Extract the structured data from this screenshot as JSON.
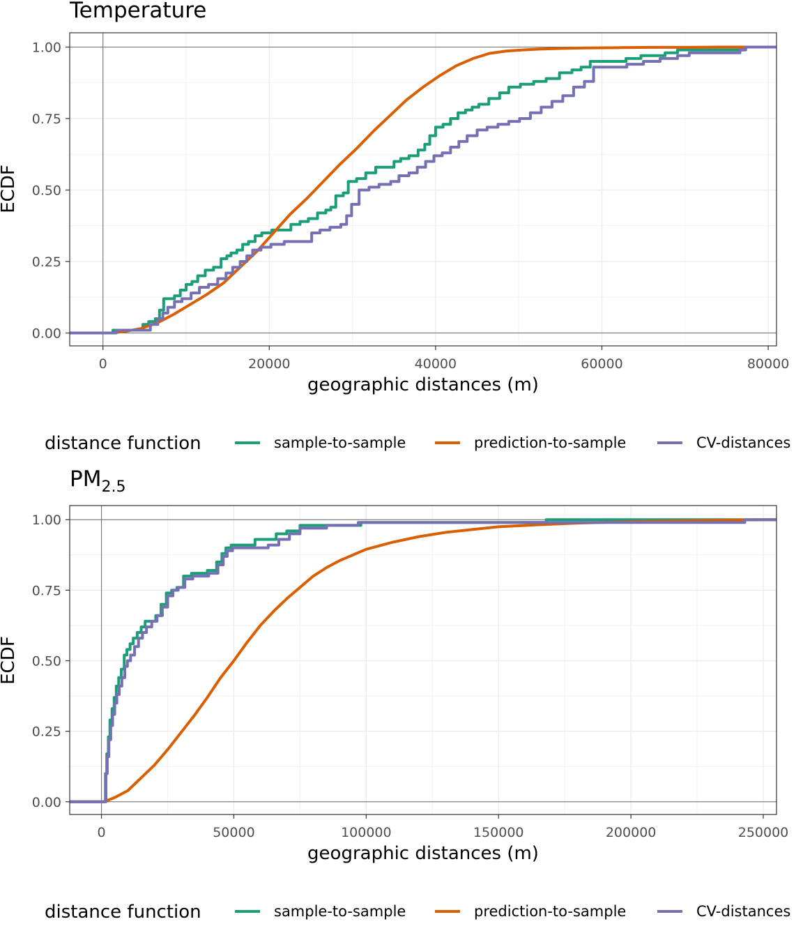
{
  "legend": {
    "title": "distance function",
    "items": [
      {
        "label": "sample-to-sample",
        "color": "#1b9e77"
      },
      {
        "label": "prediction-to-sample",
        "color": "#d95f02"
      },
      {
        "label": "CV-distances",
        "color": "#7570b3"
      }
    ]
  },
  "chart_data": [
    {
      "type": "line",
      "title": "Temperature",
      "xlabel": "geographic distances (m)",
      "ylabel": "ECDF",
      "xlim": [
        -4000,
        81000
      ],
      "ylim": [
        -0.045,
        1.05
      ],
      "xticks": [
        0,
        20000,
        40000,
        60000,
        80000
      ],
      "xtick_labels": [
        "0",
        "20000",
        "40000",
        "60000",
        "80000"
      ],
      "yticks": [
        0,
        0.25,
        0.5,
        0.75,
        1.0
      ],
      "ytick_labels": [
        "0.00",
        "0.25",
        "0.50",
        "0.75",
        "1.00"
      ],
      "grid": true,
      "legend_position": "bottom",
      "series": [
        {
          "name": "sample-to-sample",
          "color": "#1b9e77",
          "step": true,
          "x": [
            -4000,
            1000,
            1200,
            3500,
            4800,
            5500,
            6300,
            6800,
            7300,
            7800,
            8600,
            9300,
            10000,
            10700,
            11400,
            12300,
            13300,
            14200,
            14900,
            15400,
            16100,
            16800,
            17500,
            18300,
            19100,
            20300,
            21400,
            22600,
            23700,
            24700,
            25800,
            26800,
            27400,
            28000,
            28900,
            29500,
            30500,
            31600,
            32800,
            33900,
            35000,
            35800,
            36800,
            37900,
            38700,
            39300,
            40000,
            40900,
            41800,
            42700,
            43600,
            44400,
            45200,
            46400,
            47700,
            48800,
            50200,
            51800,
            53300,
            54900,
            56400,
            57500,
            58600,
            59700,
            61200,
            62900,
            64700,
            67600,
            69100,
            70600,
            72200,
            75800,
            77200,
            81000
          ],
          "y": [
            0,
            0,
            0.01,
            0.01,
            0.03,
            0.04,
            0.05,
            0.08,
            0.12,
            0.12,
            0.13,
            0.15,
            0.17,
            0.18,
            0.2,
            0.22,
            0.23,
            0.26,
            0.27,
            0.28,
            0.29,
            0.31,
            0.32,
            0.34,
            0.35,
            0.36,
            0.36,
            0.38,
            0.39,
            0.4,
            0.42,
            0.43,
            0.44,
            0.48,
            0.49,
            0.53,
            0.54,
            0.56,
            0.58,
            0.58,
            0.6,
            0.61,
            0.62,
            0.64,
            0.66,
            0.69,
            0.72,
            0.73,
            0.75,
            0.77,
            0.78,
            0.79,
            0.8,
            0.82,
            0.84,
            0.86,
            0.87,
            0.88,
            0.89,
            0.91,
            0.92,
            0.93,
            0.95,
            0.95,
            0.95,
            0.96,
            0.97,
            0.98,
            0.99,
            0.99,
            0.99,
            0.99,
            1.0,
            1.0
          ]
        },
        {
          "name": "prediction-to-sample",
          "color": "#d95f02",
          "step": false,
          "x": [
            -4000,
            1000,
            2500,
            4500,
            6500,
            8500,
            10500,
            12500,
            14500,
            16500,
            18500,
            20500,
            22500,
            24500,
            26500,
            28500,
            30500,
            32500,
            34500,
            36500,
            38500,
            40500,
            42500,
            44500,
            46500,
            48500,
            50500,
            52500,
            55000,
            58000,
            62000,
            66000,
            70000,
            74000,
            77000,
            81000
          ],
          "y": [
            0,
            0,
            0.005,
            0.015,
            0.035,
            0.065,
            0.1,
            0.135,
            0.175,
            0.23,
            0.285,
            0.35,
            0.415,
            0.47,
            0.53,
            0.59,
            0.645,
            0.705,
            0.76,
            0.815,
            0.86,
            0.9,
            0.935,
            0.96,
            0.978,
            0.986,
            0.99,
            0.993,
            0.995,
            0.997,
            0.998,
            0.999,
            0.999,
            1.0,
            1.0,
            1.0
          ]
        },
        {
          "name": "CV-distances",
          "color": "#7570b3",
          "step": true,
          "x": [
            -4000,
            1200,
            1600,
            4500,
            5700,
            6600,
            7200,
            7800,
            8600,
            9500,
            10600,
            11600,
            12700,
            13800,
            14800,
            15600,
            16500,
            17300,
            18000,
            19000,
            20200,
            21800,
            24000,
            25100,
            26100,
            27300,
            28600,
            29300,
            29900,
            30800,
            32000,
            33200,
            34600,
            35600,
            36800,
            37800,
            38800,
            39800,
            40800,
            41800,
            42800,
            43800,
            45000,
            46200,
            47500,
            48800,
            50100,
            51400,
            52700,
            54000,
            55300,
            56600,
            57900,
            59000,
            61100,
            63000,
            65000,
            67000,
            69100,
            70500,
            75500,
            76600,
            77300,
            81000
          ],
          "y": [
            0,
            0,
            0.01,
            0.01,
            0.03,
            0.05,
            0.07,
            0.09,
            0.11,
            0.12,
            0.14,
            0.16,
            0.17,
            0.19,
            0.21,
            0.23,
            0.25,
            0.27,
            0.29,
            0.3,
            0.31,
            0.32,
            0.32,
            0.35,
            0.36,
            0.37,
            0.38,
            0.41,
            0.45,
            0.5,
            0.51,
            0.52,
            0.53,
            0.55,
            0.56,
            0.58,
            0.6,
            0.62,
            0.63,
            0.65,
            0.67,
            0.69,
            0.71,
            0.72,
            0.73,
            0.74,
            0.75,
            0.77,
            0.79,
            0.81,
            0.83,
            0.86,
            0.88,
            0.93,
            0.93,
            0.94,
            0.95,
            0.96,
            0.97,
            0.98,
            0.98,
            0.99,
            1.0,
            1.0
          ]
        }
      ]
    },
    {
      "type": "line",
      "title": "PM",
      "title_subscript": "2.5",
      "xlabel": "geographic distances (m)",
      "ylabel": "ECDF",
      "xlim": [
        -12000,
        255000
      ],
      "ylim": [
        -0.045,
        1.05
      ],
      "xticks": [
        0,
        50000,
        100000,
        150000,
        200000,
        250000
      ],
      "xtick_labels": [
        "0",
        "50000",
        "100000",
        "150000",
        "200000",
        "250000"
      ],
      "yticks": [
        0,
        0.25,
        0.5,
        0.75,
        1.0
      ],
      "ytick_labels": [
        "0.00",
        "0.25",
        "0.50",
        "0.75",
        "1.00"
      ],
      "grid": true,
      "legend_position": "bottom",
      "series": [
        {
          "name": "sample-to-sample",
          "color": "#1b9e77",
          "step": true,
          "x": [
            -12000,
            1000,
            1500,
            2000,
            2600,
            3200,
            4000,
            4800,
            5600,
            6500,
            7500,
            8600,
            9600,
            10800,
            12000,
            13500,
            15000,
            16500,
            18500,
            20500,
            22500,
            24500,
            26500,
            28500,
            31000,
            34000,
            37000,
            40000,
            43500,
            45500,
            47000,
            49000,
            53000,
            58000,
            62000,
            66000,
            70000,
            75000,
            85000,
            98000,
            110000,
            130000,
            150000,
            168000,
            190000,
            220000,
            244000,
            255000
          ],
          "y": [
            0,
            0,
            0.1,
            0.17,
            0.23,
            0.29,
            0.33,
            0.37,
            0.41,
            0.44,
            0.47,
            0.52,
            0.54,
            0.56,
            0.58,
            0.6,
            0.62,
            0.64,
            0.64,
            0.66,
            0.7,
            0.74,
            0.75,
            0.76,
            0.8,
            0.81,
            0.81,
            0.82,
            0.85,
            0.88,
            0.9,
            0.91,
            0.91,
            0.93,
            0.93,
            0.95,
            0.96,
            0.98,
            0.98,
            0.99,
            0.99,
            0.99,
            0.99,
            1.0,
            1.0,
            1.0,
            1.0,
            1.0
          ]
        },
        {
          "name": "prediction-to-sample",
          "color": "#d95f02",
          "step": false,
          "x": [
            -12000,
            1000,
            5000,
            10000,
            15000,
            20000,
            25000,
            30000,
            35000,
            40000,
            45000,
            50000,
            55000,
            60000,
            65000,
            70000,
            75000,
            80000,
            85000,
            90000,
            95000,
            100000,
            110000,
            120000,
            130000,
            140000,
            150000,
            165000,
            180000,
            200000,
            220000,
            240000,
            255000
          ],
          "y": [
            0,
            0,
            0.015,
            0.04,
            0.085,
            0.13,
            0.185,
            0.245,
            0.305,
            0.37,
            0.44,
            0.5,
            0.565,
            0.625,
            0.675,
            0.72,
            0.76,
            0.8,
            0.83,
            0.855,
            0.875,
            0.895,
            0.92,
            0.94,
            0.955,
            0.965,
            0.975,
            0.982,
            0.988,
            0.993,
            0.996,
            0.999,
            1.0
          ]
        },
        {
          "name": "CV-distances",
          "color": "#7570b3",
          "step": true,
          "x": [
            -12000,
            1200,
            1700,
            2200,
            2800,
            3500,
            4200,
            5000,
            5800,
            6700,
            7700,
            8800,
            9800,
            11000,
            12500,
            14000,
            15500,
            17000,
            19000,
            21000,
            23000,
            25000,
            27000,
            29000,
            31500,
            34500,
            37500,
            40500,
            44000,
            46000,
            47500,
            49500,
            53500,
            58000,
            63000,
            67000,
            71000,
            75000,
            85000,
            97000,
            110000,
            130000,
            150000,
            170000,
            200000,
            230000,
            243000,
            255000
          ],
          "y": [
            0,
            0,
            0.1,
            0.16,
            0.22,
            0.27,
            0.31,
            0.35,
            0.38,
            0.41,
            0.44,
            0.48,
            0.5,
            0.52,
            0.55,
            0.58,
            0.6,
            0.62,
            0.64,
            0.66,
            0.69,
            0.73,
            0.75,
            0.76,
            0.79,
            0.8,
            0.8,
            0.81,
            0.84,
            0.87,
            0.89,
            0.9,
            0.9,
            0.9,
            0.91,
            0.93,
            0.95,
            0.97,
            0.98,
            0.99,
            0.99,
            0.99,
            0.99,
            0.99,
            0.99,
            0.99,
            1.0,
            1.0
          ]
        }
      ]
    }
  ]
}
